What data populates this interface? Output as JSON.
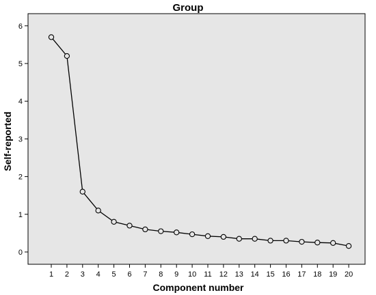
{
  "chart_data": {
    "type": "line",
    "title": "Group",
    "xlabel": "Component number",
    "ylabel": "Self-reported",
    "x": [
      1,
      2,
      3,
      4,
      5,
      6,
      7,
      8,
      9,
      10,
      11,
      12,
      13,
      14,
      15,
      16,
      17,
      18,
      19,
      20
    ],
    "y": [
      5.7,
      5.2,
      1.6,
      1.1,
      0.8,
      0.7,
      0.6,
      0.55,
      0.52,
      0.47,
      0.42,
      0.4,
      0.35,
      0.35,
      0.3,
      0.3,
      0.27,
      0.25,
      0.24,
      0.16
    ],
    "x_ticks": [
      "1",
      "2",
      "3",
      "4",
      "5",
      "6",
      "7",
      "8",
      "9",
      "10",
      "11",
      "12",
      "13",
      "14",
      "15",
      "16",
      "17",
      "18",
      "19",
      "20"
    ],
    "y_ticks": [
      "0",
      "1",
      "2",
      "3",
      "4",
      "5",
      "6"
    ],
    "ylim": [
      -0.3,
      6.3
    ],
    "grid": false,
    "colors": {
      "plot_background": "#e6e6e6",
      "line": "#000000",
      "marker_fill": "#e6e6e6"
    }
  }
}
